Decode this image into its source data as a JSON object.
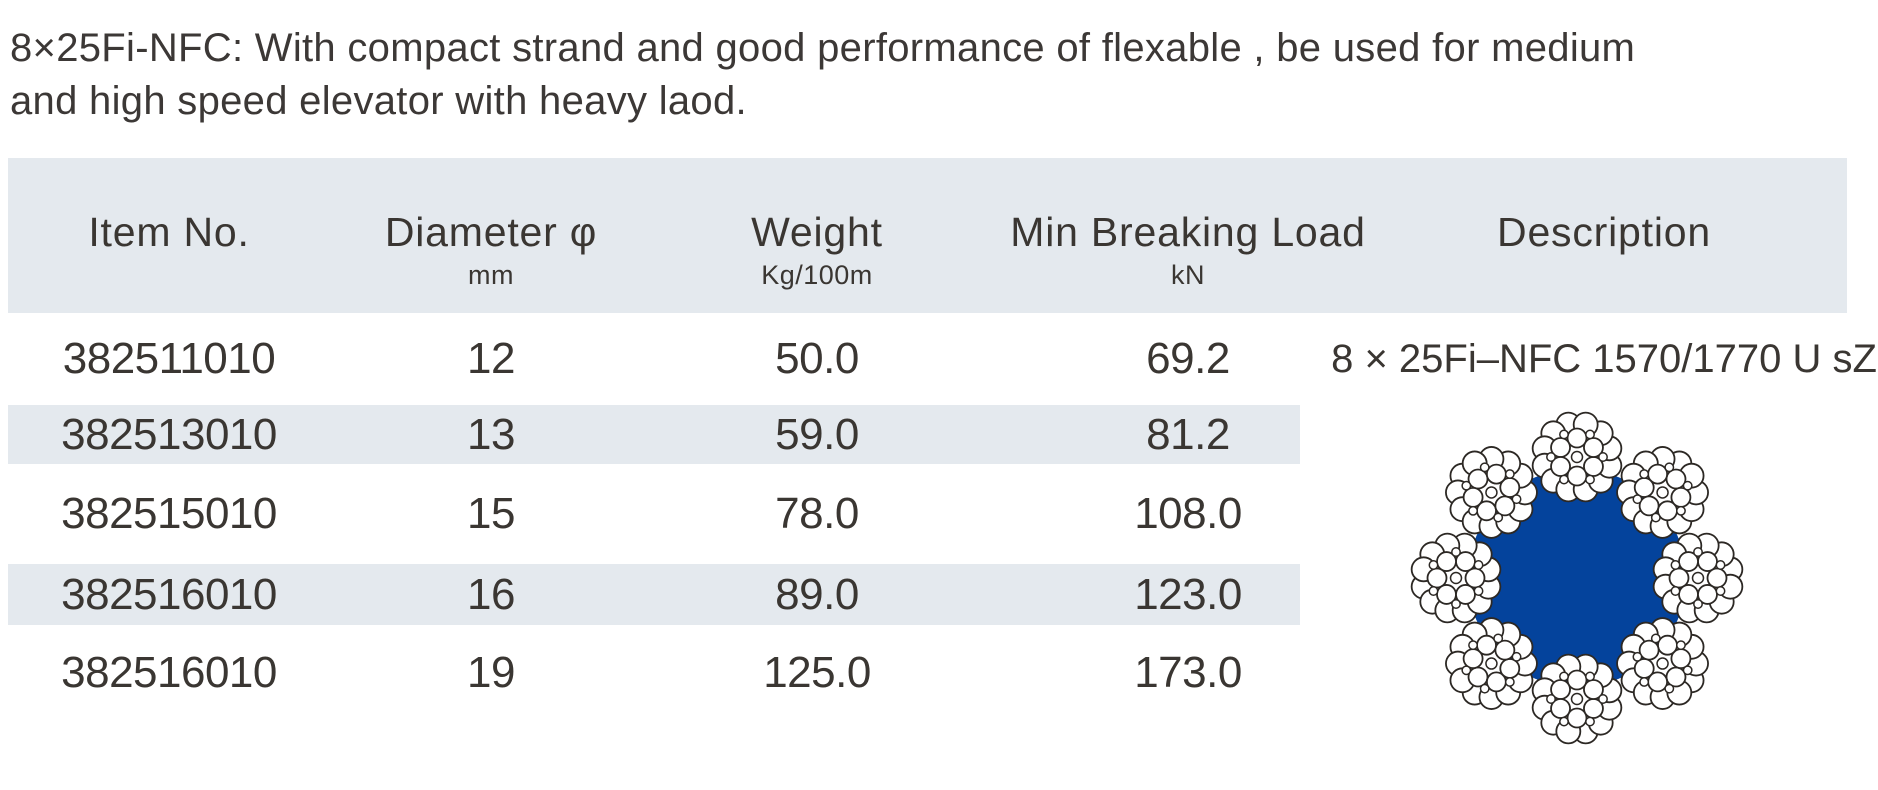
{
  "intro": {
    "line1": "8×25Fi-NFC: With compact strand and good performance of flexable , be used for medium",
    "line2": "and high speed elevator with heavy laod."
  },
  "table": {
    "columns": [
      {
        "label": "Item No.",
        "unit": ""
      },
      {
        "label": "Diameter φ",
        "unit": "mm"
      },
      {
        "label": "Weight",
        "unit": "Kg/100m"
      },
      {
        "label": "Min Breaking Load",
        "unit": "kN"
      },
      {
        "label": "Description",
        "unit": ""
      }
    ],
    "rows": [
      {
        "item_no": "382511010",
        "diameter": "12",
        "weight": "50.0",
        "min_breaking_load": "69.2",
        "description": "8 × 25Fi–NFC 1570/1770 U sZ"
      },
      {
        "item_no": "382513010",
        "diameter": "13",
        "weight": "59.0",
        "min_breaking_load": "81.2",
        "description": ""
      },
      {
        "item_no": "382515010",
        "diameter": "15",
        "weight": "78.0",
        "min_breaking_load": "108.0",
        "description": ""
      },
      {
        "item_no": "382516010",
        "diameter": "16",
        "weight": "89.0",
        "min_breaking_load": "123.0",
        "description": ""
      },
      {
        "item_no": "382516010",
        "diameter": "19",
        "weight": "125.0",
        "min_breaking_load": "173.0",
        "description": ""
      }
    ]
  },
  "illustration": {
    "name": "wire-rope-cross-section",
    "strand_count": 8,
    "wires_per_strand": 25,
    "core_color": "#04439C",
    "wire_fill": "#FFFFFF",
    "wire_outline": "#2c2824"
  },
  "colors": {
    "header_band": "#E4E9EE",
    "stripe": "#E4E9EE",
    "text": "#3A3632"
  }
}
